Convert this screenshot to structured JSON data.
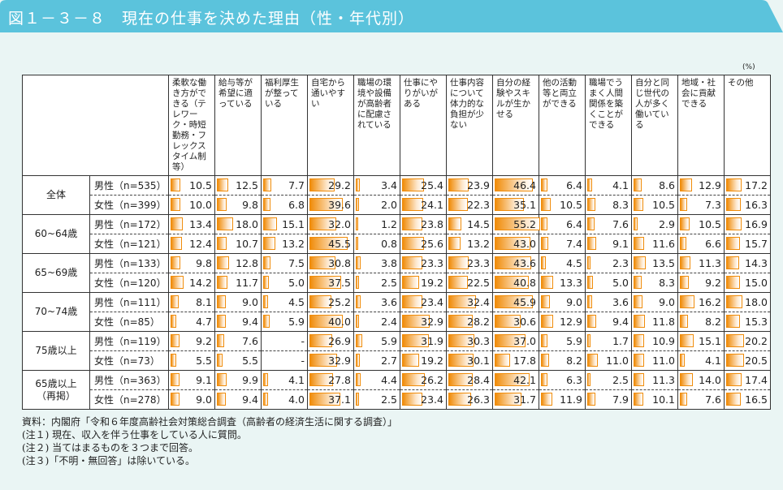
{
  "title": "図１－３－８　現在の仕事を決めた理由（性・年代別）",
  "unit": "(%)",
  "colors": {
    "header": "#5bc3dc",
    "background": "#eaf5f4",
    "bar": "#f08c0a"
  },
  "chart_data": {
    "type": "table",
    "title": "図１－３－８　現在の仕事を決めた理由（性・年代別）",
    "unit": "%",
    "columns": [
      "柔軟な働き方ができる（テレワーク・時短勤務・フレックスタイム制等）",
      "給与等が希望に適っている",
      "福利厚生が整っている",
      "自宅から通いやすい",
      "職場の環境や設備が高齢者に配慮されている",
      "仕事にやりがいがある",
      "仕事内容について体力的な負担が少ない",
      "自分の経験やスキルが生かせる",
      "他の活動等と両立ができる",
      "職場でうまく人間関係を築くことができる",
      "自分と同じ世代の人が多く働いている",
      "地域・社会に貢献できる",
      "その他"
    ],
    "groups": [
      {
        "label": "全体",
        "rows": [
          {
            "label": "男性（n=535）",
            "values": [
              10.5,
              12.5,
              7.7,
              29.2,
              3.4,
              25.4,
              23.9,
              46.4,
              6.4,
              4.1,
              8.6,
              12.9,
              17.2
            ]
          },
          {
            "label": "女性（n=399）",
            "values": [
              10.0,
              9.8,
              6.8,
              39.6,
              2.0,
              24.1,
              22.3,
              35.1,
              10.5,
              8.3,
              10.5,
              7.3,
              16.3
            ]
          }
        ]
      },
      {
        "label": "60~64歳",
        "rows": [
          {
            "label": "男性（n=172）",
            "values": [
              13.4,
              18.0,
              15.1,
              32.0,
              1.2,
              23.8,
              14.5,
              55.2,
              6.4,
              7.6,
              2.9,
              10.5,
              16.9
            ]
          },
          {
            "label": "女性（n=121）",
            "values": [
              12.4,
              10.7,
              13.2,
              45.5,
              0.8,
              25.6,
              13.2,
              43.0,
              7.4,
              9.1,
              11.6,
              6.6,
              15.7
            ]
          }
        ]
      },
      {
        "label": "65~69歳",
        "rows": [
          {
            "label": "男性（n=133）",
            "values": [
              9.8,
              12.8,
              7.5,
              30.8,
              3.8,
              23.3,
              23.3,
              43.6,
              4.5,
              2.3,
              13.5,
              11.3,
              14.3
            ]
          },
          {
            "label": "女性（n=120）",
            "values": [
              14.2,
              11.7,
              5.0,
              37.5,
              2.5,
              19.2,
              22.5,
              40.8,
              13.3,
              5.0,
              8.3,
              9.2,
              15.0
            ]
          }
        ]
      },
      {
        "label": "70~74歳",
        "rows": [
          {
            "label": "男性（n=111）",
            "values": [
              8.1,
              9.0,
              4.5,
              25.2,
              3.6,
              23.4,
              32.4,
              45.9,
              9.0,
              3.6,
              9.0,
              16.2,
              18.0
            ]
          },
          {
            "label": "女性（n=85）",
            "values": [
              4.7,
              9.4,
              5.9,
              40.0,
              2.4,
              32.9,
              28.2,
              30.6,
              12.9,
              9.4,
              11.8,
              8.2,
              15.3
            ]
          }
        ]
      },
      {
        "label": "75歳以上",
        "rows": [
          {
            "label": "男性（n=119）",
            "values": [
              9.2,
              7.6,
              "-",
              26.9,
              5.9,
              31.9,
              30.3,
              37.0,
              5.9,
              1.7,
              10.9,
              15.1,
              20.2
            ]
          },
          {
            "label": "女性（n=73）",
            "values": [
              5.5,
              5.5,
              "-",
              32.9,
              2.7,
              19.2,
              30.1,
              17.8,
              8.2,
              11.0,
              11.0,
              4.1,
              20.5
            ]
          }
        ]
      },
      {
        "label": "65歳以上（再掲）",
        "rows": [
          {
            "label": "男性（n=363）",
            "values": [
              9.1,
              9.9,
              4.1,
              27.8,
              4.4,
              26.2,
              28.4,
              42.1,
              6.3,
              2.5,
              11.3,
              14.0,
              17.4
            ]
          },
          {
            "label": "女性（n=278）",
            "values": [
              9.0,
              9.4,
              4.0,
              37.1,
              2.5,
              23.4,
              26.3,
              31.7,
              11.9,
              7.9,
              10.1,
              7.6,
              16.5
            ]
          }
        ]
      }
    ]
  },
  "notes": [
    "資料：内閣府「令和６年度高齢社会対策総合調査（高齢者の経済生活に関する調査）」",
    "(注１) 現在、収入を伴う仕事をしている人に質問。",
    "(注２) 当てはまるものを３つまで回答。",
    "(注３)「不明・無回答」は除いている。"
  ]
}
